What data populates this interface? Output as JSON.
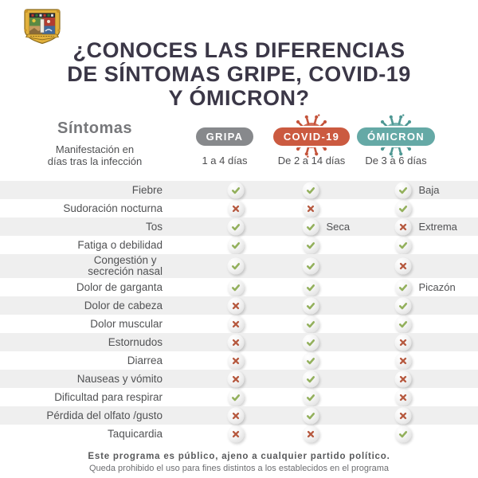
{
  "header": {
    "title_lines": [
      "¿CONOCES LAS DIFERENCIAS",
      "DE SÍNTOMAS GRIPE, COVID-19",
      "Y ÓMICRON?"
    ]
  },
  "logo": {
    "name": "coat-of-arms-shield"
  },
  "columns_header": {
    "symptoms_label": "Síntomas",
    "subheader_lines": [
      "Manifestación en",
      "días tras la infección"
    ]
  },
  "columns": [
    {
      "key": "gripa",
      "label": "GRIPA",
      "days": "1 a 4 días",
      "pill_color": "#87898c",
      "virus": false
    },
    {
      "key": "covid",
      "label": "COVID-19",
      "days": "De 2 a 14 días",
      "pill_color": "#cb5a40",
      "virus": true,
      "virus_color": "#d4705a",
      "virus_spike_color": "#c4533a"
    },
    {
      "key": "omicron",
      "label": "ÓMICRON",
      "days": "De 3 a 6 días",
      "pill_color": "#65a9a6",
      "virus": true,
      "virus_color": "#79b5b1",
      "virus_spike_color": "#4f9894"
    }
  ],
  "rows": [
    {
      "label": "Fiebre",
      "gripa": {
        "mark": "check"
      },
      "covid": {
        "mark": "check"
      },
      "omicron": {
        "mark": "check",
        "note": "Baja"
      }
    },
    {
      "label": "Sudoración nocturna",
      "gripa": {
        "mark": "cross"
      },
      "covid": {
        "mark": "cross"
      },
      "omicron": {
        "mark": "check"
      }
    },
    {
      "label": "Tos",
      "gripa": {
        "mark": "check"
      },
      "covid": {
        "mark": "check",
        "note": "Seca"
      },
      "omicron": {
        "mark": "cross",
        "note": "Extrema"
      }
    },
    {
      "label": "Fatiga o debilidad",
      "gripa": {
        "mark": "check"
      },
      "covid": {
        "mark": "check"
      },
      "omicron": {
        "mark": "check"
      }
    },
    {
      "label": "Congestión y\nsecreción nasal",
      "gripa": {
        "mark": "check"
      },
      "covid": {
        "mark": "check"
      },
      "omicron": {
        "mark": "cross"
      }
    },
    {
      "label": "Dolor de garganta",
      "gripa": {
        "mark": "check"
      },
      "covid": {
        "mark": "check"
      },
      "omicron": {
        "mark": "check",
        "note": "Picazón"
      }
    },
    {
      "label": "Dolor de cabeza",
      "gripa": {
        "mark": "cross"
      },
      "covid": {
        "mark": "check"
      },
      "omicron": {
        "mark": "check"
      }
    },
    {
      "label": "Dolor muscular",
      "gripa": {
        "mark": "cross"
      },
      "covid": {
        "mark": "check"
      },
      "omicron": {
        "mark": "check"
      }
    },
    {
      "label": "Estornudos",
      "gripa": {
        "mark": "cross"
      },
      "covid": {
        "mark": "check"
      },
      "omicron": {
        "mark": "cross"
      }
    },
    {
      "label": "Diarrea",
      "gripa": {
        "mark": "cross"
      },
      "covid": {
        "mark": "check"
      },
      "omicron": {
        "mark": "cross"
      }
    },
    {
      "label": "Nauseas y vómito",
      "gripa": {
        "mark": "cross"
      },
      "covid": {
        "mark": "check"
      },
      "omicron": {
        "mark": "cross"
      }
    },
    {
      "label": "Dificultad para respirar",
      "gripa": {
        "mark": "check"
      },
      "covid": {
        "mark": "check"
      },
      "omicron": {
        "mark": "cross"
      }
    },
    {
      "label": "Pérdida del olfato /gusto",
      "gripa": {
        "mark": "cross"
      },
      "covid": {
        "mark": "check"
      },
      "omicron": {
        "mark": "cross"
      }
    },
    {
      "label": "Taquicardia",
      "gripa": {
        "mark": "cross"
      },
      "covid": {
        "mark": "cross"
      },
      "omicron": {
        "mark": "check"
      }
    }
  ],
  "footer": {
    "line1": "Este programa es público, ajeno a cualquier partido político.",
    "line2": "Queda prohibido el uso para fines distintos a los establecidos en el programa"
  },
  "colors": {
    "title": "#3b3747",
    "row_shade": "#efefef",
    "check_green": "#93b05c",
    "cross_red": "#b6593f",
    "gripa_pill": "#87898c",
    "covid_pill": "#cb5a40",
    "omicron_pill": "#65a9a6"
  }
}
